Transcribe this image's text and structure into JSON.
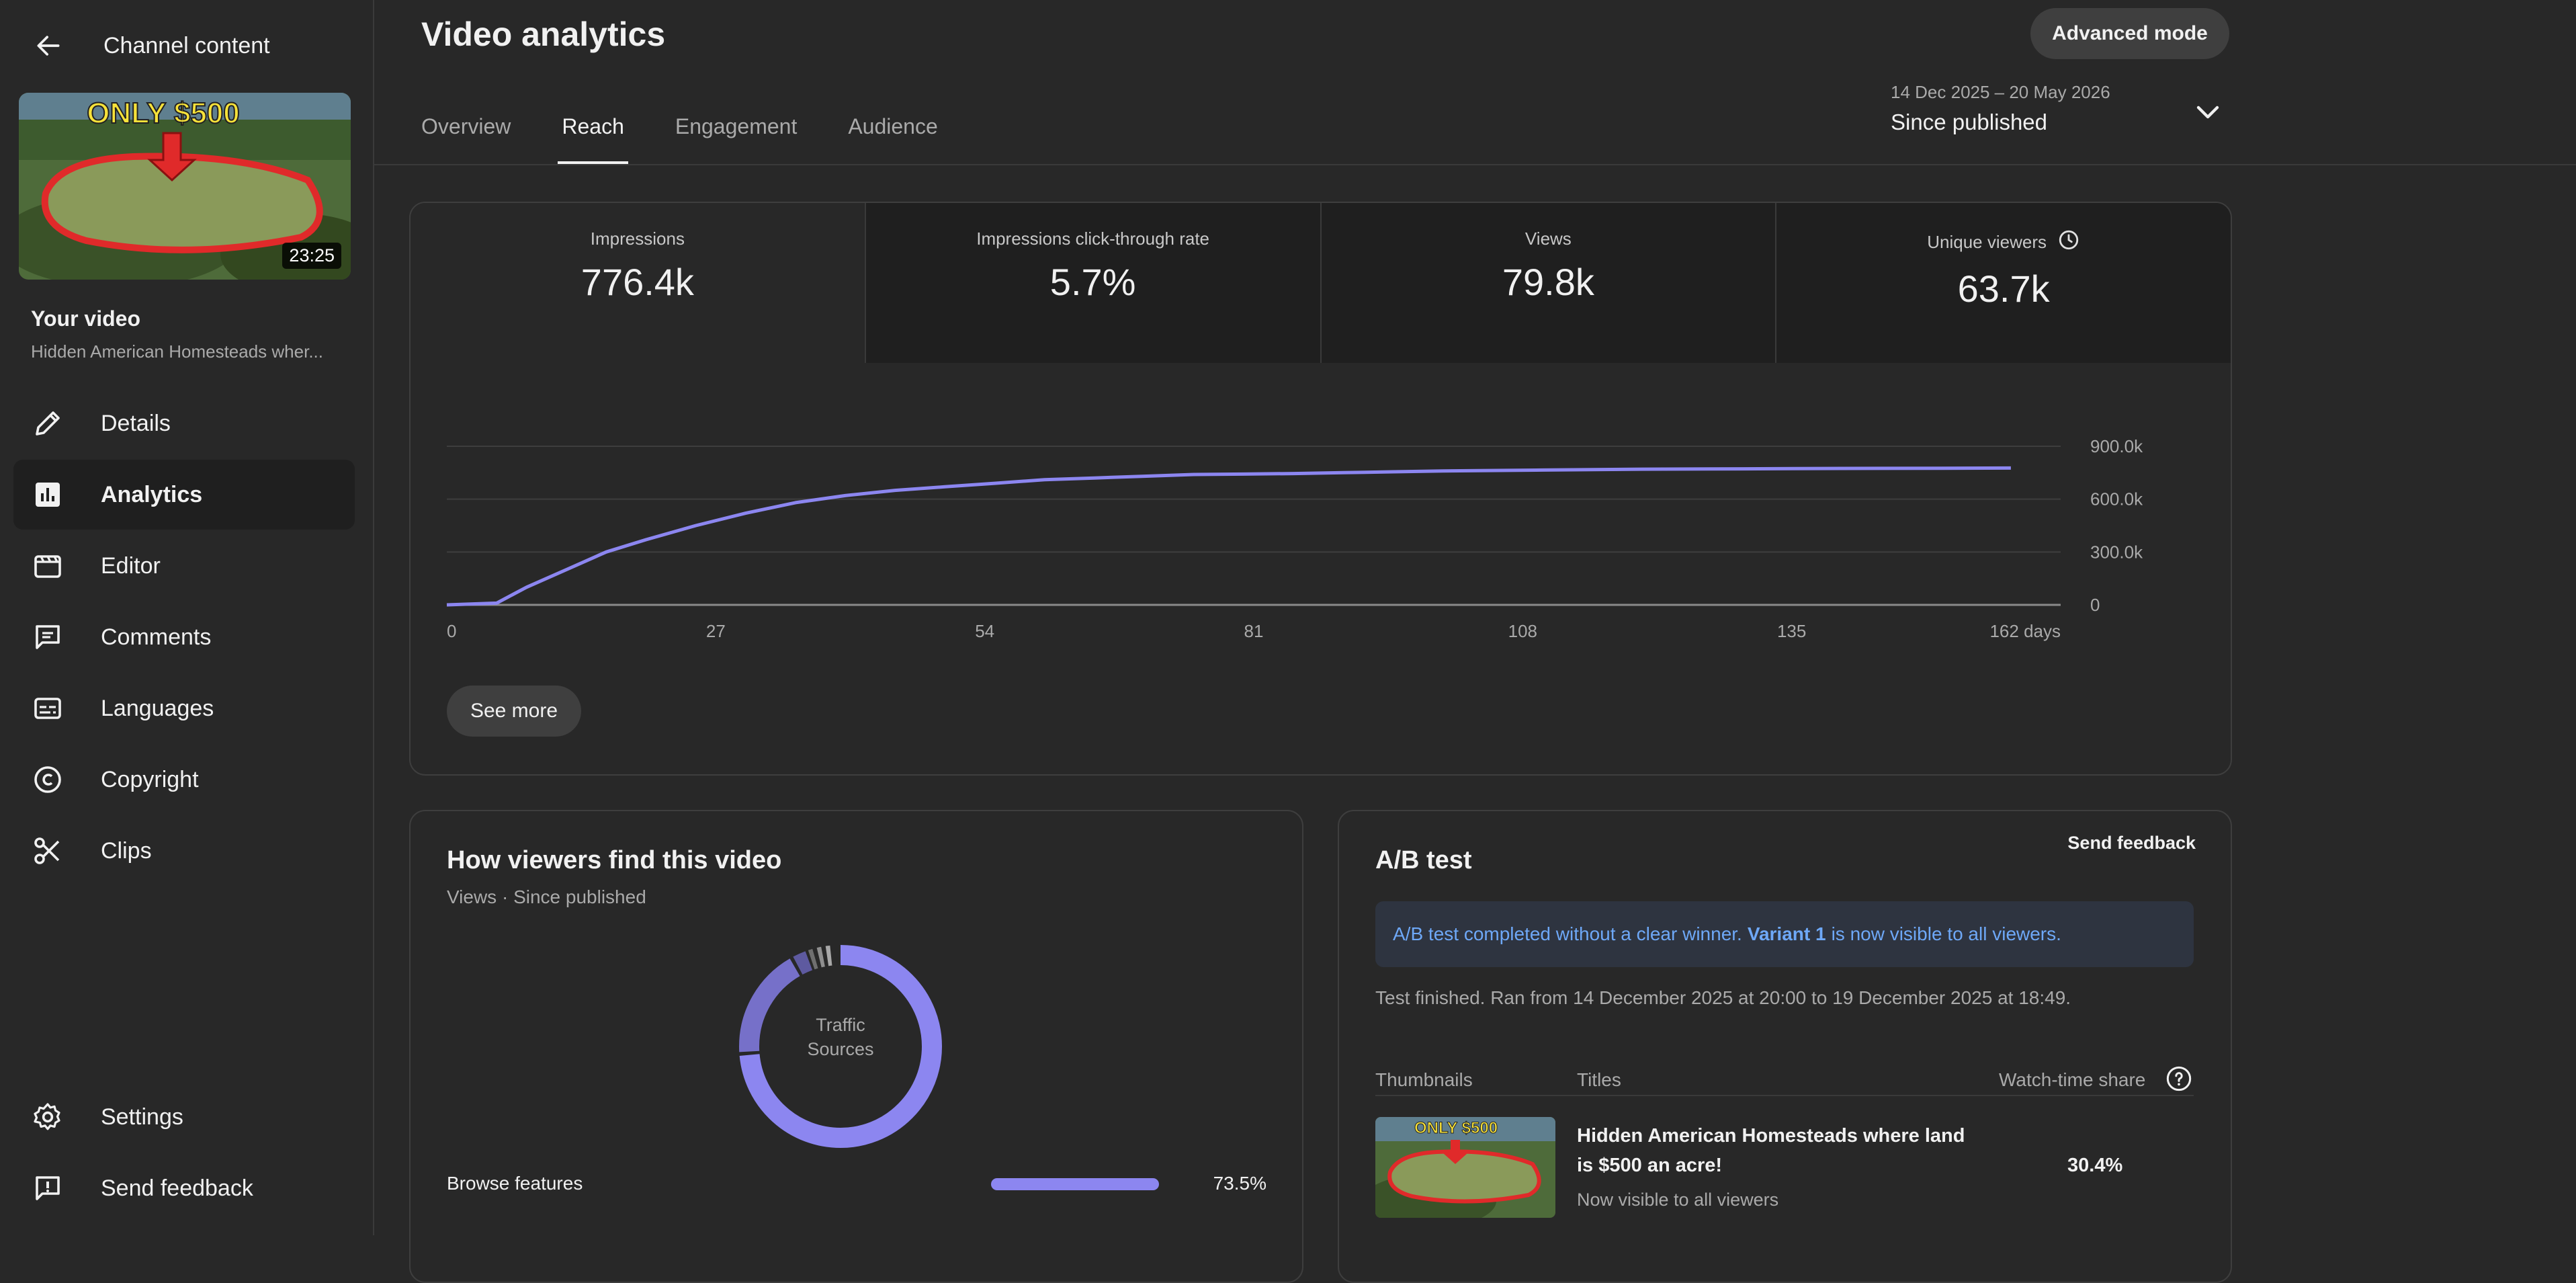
{
  "sidebar": {
    "back_label": "Channel content",
    "thumbnail": {
      "overlay_text": "ONLY $500",
      "duration": "23:25"
    },
    "video_heading": "Your video",
    "video_title": "Hidden American Homesteads wher...",
    "nav": [
      {
        "label": "Details",
        "icon": "pencil-icon"
      },
      {
        "label": "Analytics",
        "icon": "analytics-icon",
        "active": true
      },
      {
        "label": "Editor",
        "icon": "editor-icon"
      },
      {
        "label": "Comments",
        "icon": "comments-icon"
      },
      {
        "label": "Languages",
        "icon": "subtitles-icon"
      },
      {
        "label": "Copyright",
        "icon": "copyright-icon"
      },
      {
        "label": "Clips",
        "icon": "scissors-icon"
      }
    ],
    "bottom_nav": [
      {
        "label": "Settings",
        "icon": "gear-icon"
      },
      {
        "label": "Send feedback",
        "icon": "feedback-icon"
      }
    ]
  },
  "header": {
    "title": "Video analytics",
    "advanced_mode": "Advanced mode",
    "tabs": [
      "Overview",
      "Reach",
      "Engagement",
      "Audience"
    ],
    "active_tab": "Reach",
    "date_range": "14 Dec 2025 – 20 May 2026",
    "date_label": "Since published"
  },
  "reach": {
    "metrics": [
      {
        "label": "Impressions",
        "value": "776.4k"
      },
      {
        "label": "Impressions click-through rate",
        "value": "5.7%"
      },
      {
        "label": "Views",
        "value": "79.8k"
      },
      {
        "label": "Unique viewers",
        "value": "63.7k"
      }
    ],
    "see_more": "See more"
  },
  "chart_data": {
    "type": "line",
    "title": "",
    "xlabel": "",
    "ylabel": "",
    "x_ticks": [
      "0",
      "27",
      "54",
      "81",
      "108",
      "135",
      "162 days"
    ],
    "y_ticks": [
      "0",
      "300.0k",
      "600.0k",
      "900.0k"
    ],
    "xlim": [
      0,
      162
    ],
    "ylim": [
      0,
      900000
    ],
    "grid": true,
    "line_color": "#8c86f0",
    "series": [
      {
        "x": [
          0,
          5,
          8,
          12,
          16,
          20,
          25,
          30,
          35,
          40,
          45,
          50,
          55,
          60,
          65,
          70,
          75,
          80,
          85,
          90,
          95,
          100,
          110,
          120,
          130,
          140,
          150,
          157
        ],
        "y": [
          0,
          10000,
          100000,
          200000,
          300000,
          370000,
          450000,
          520000,
          580000,
          620000,
          650000,
          670000,
          690000,
          710000,
          720000,
          730000,
          740000,
          742000,
          745000,
          750000,
          755000,
          760000,
          765000,
          770000,
          772000,
          774000,
          775000,
          776400
        ]
      }
    ]
  },
  "traffic": {
    "title": "How viewers find this video",
    "subtitle": "Views · Since published",
    "donut_label_1": "Traffic",
    "donut_label_2": "Sources",
    "browse": {
      "name": "Browse features",
      "pct": "73.5%",
      "value": 0.735
    }
  },
  "ab_test": {
    "title": "A/B test",
    "send_feedback": "Send feedback",
    "banner_pre": "A/B test completed without a clear winner.",
    "banner_variant": "Variant 1",
    "banner_post": "is now visible to all viewers.",
    "finished": "Test finished. Ran from 14 December 2025 at 20:00 to 19 December 2025 at 18:49.",
    "col_thumbnails": "Thumbnails",
    "col_titles": "Titles",
    "col_share": "Watch-time share",
    "row_title": "Hidden American Homesteads where land is $500 an acre!",
    "row_status": "Now visible to all viewers",
    "row_share": "30.4%",
    "row_thumb_text": "ONLY $500"
  }
}
